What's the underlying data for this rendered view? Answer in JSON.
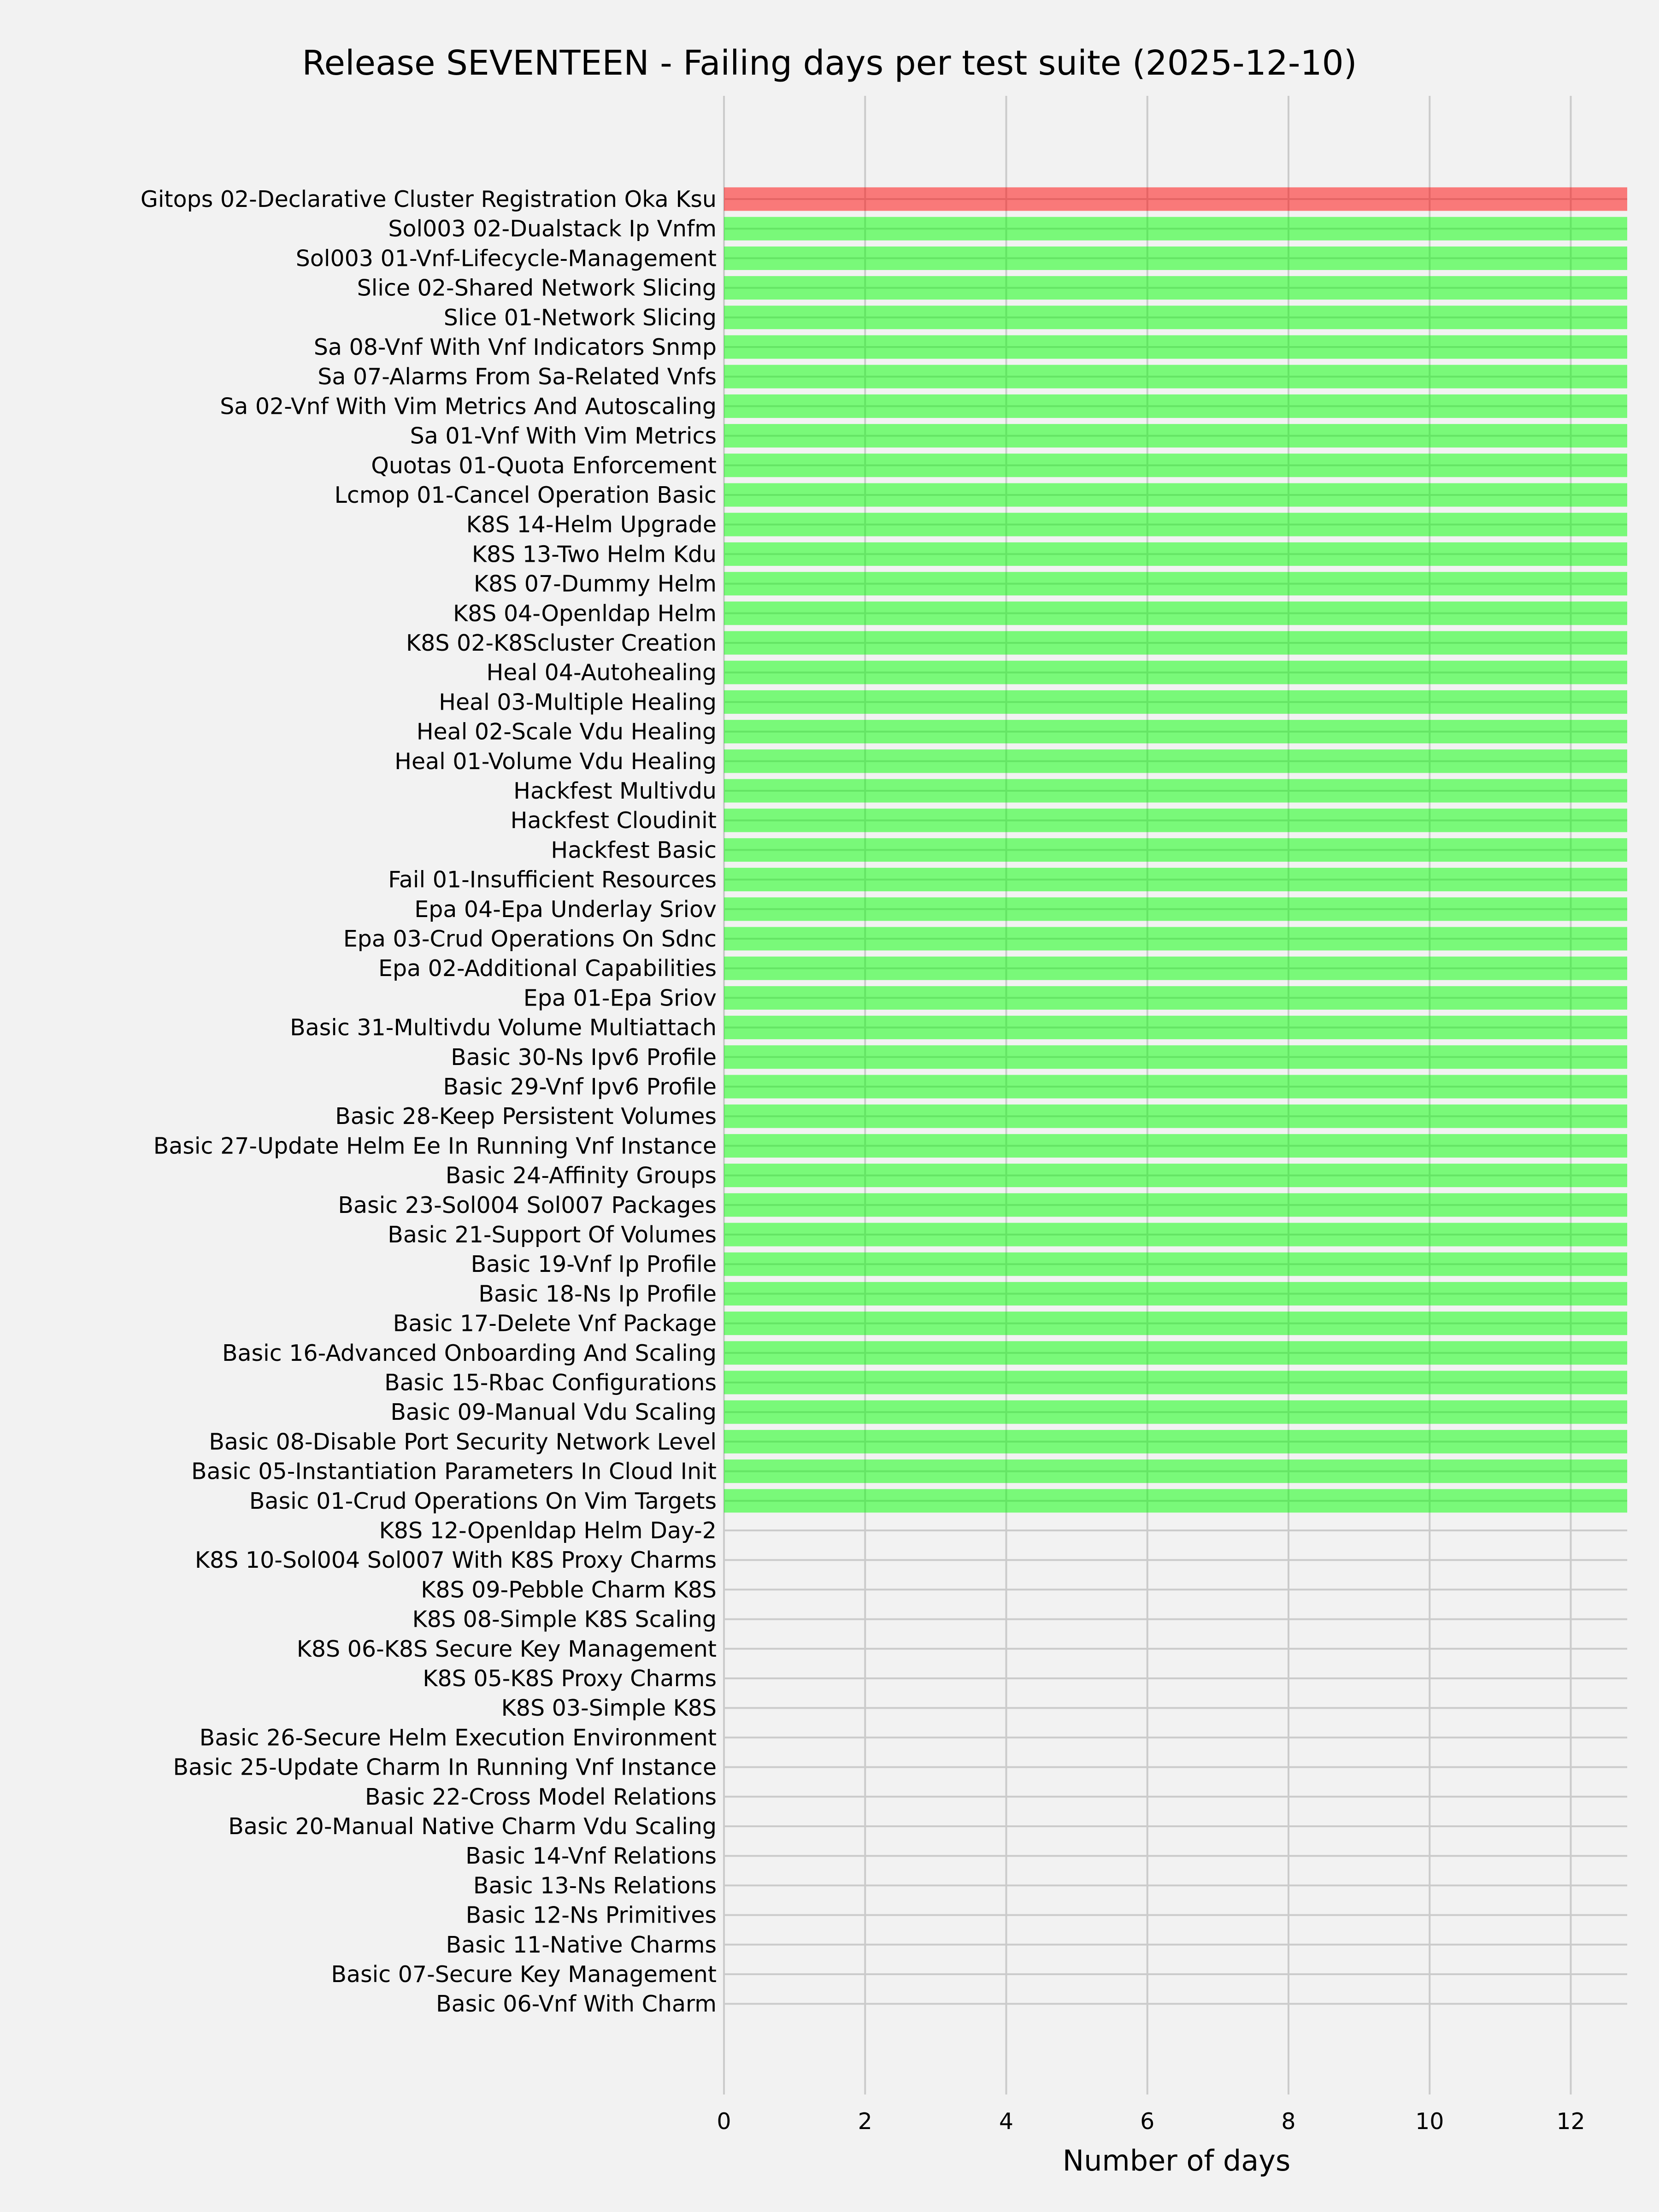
{
  "chart_data": {
    "type": "bar",
    "orientation": "horizontal",
    "title": "Release SEVENTEEN - Failing days per test suite (2025-12-10)",
    "xlabel": "Number of days",
    "ylabel": "",
    "xlim": [
      0,
      12.8
    ],
    "xticks": [
      0,
      2,
      4,
      6,
      8,
      10,
      12
    ],
    "grid": true,
    "background": "#f2f2f2",
    "bar_colors": {
      "failing": "#ff0000",
      "passing": "#00ff00"
    },
    "bar_alpha": 0.5,
    "categories": [
      "Gitops 02-Declarative Cluster Registration Oka Ksu",
      "Sol003 02-Dualstack Ip Vnfm",
      "Sol003 01-Vnf-Lifecycle-Management",
      "Slice 02-Shared Network Slicing",
      "Slice 01-Network Slicing",
      "Sa 08-Vnf With Vnf Indicators Snmp",
      "Sa 07-Alarms From Sa-Related Vnfs",
      "Sa 02-Vnf With Vim Metrics And Autoscaling",
      "Sa 01-Vnf With Vim Metrics",
      "Quotas 01-Quota Enforcement",
      "Lcmop 01-Cancel Operation Basic",
      "K8S 14-Helm Upgrade",
      "K8S 13-Two Helm Kdu",
      "K8S 07-Dummy Helm",
      "K8S 04-Openldap Helm",
      "K8S 02-K8Scluster Creation",
      "Heal 04-Autohealing",
      "Heal 03-Multiple Healing",
      "Heal 02-Scale Vdu Healing",
      "Heal 01-Volume Vdu Healing",
      "Hackfest Multivdu",
      "Hackfest Cloudinit",
      "Hackfest Basic",
      "Fail 01-Insufficient Resources",
      "Epa 04-Epa Underlay Sriov",
      "Epa 03-Crud Operations On Sdnc",
      "Epa 02-Additional Capabilities",
      "Epa 01-Epa Sriov",
      "Basic 31-Multivdu Volume Multiattach",
      "Basic 30-Ns Ipv6 Profile",
      "Basic 29-Vnf Ipv6 Profile",
      "Basic 28-Keep Persistent Volumes",
      "Basic 27-Update Helm Ee In Running Vnf Instance",
      "Basic 24-Affinity Groups",
      "Basic 23-Sol004 Sol007 Packages",
      "Basic 21-Support Of Volumes",
      "Basic 19-Vnf Ip Profile",
      "Basic 18-Ns Ip Profile",
      "Basic 17-Delete Vnf Package",
      "Basic 16-Advanced Onboarding And Scaling",
      "Basic 15-Rbac Configurations",
      "Basic 09-Manual Vdu Scaling",
      "Basic 08-Disable Port Security Network Level",
      "Basic 05-Instantiation Parameters In Cloud Init",
      "Basic 01-Crud Operations On Vim Targets",
      "K8S 12-Openldap Helm Day-2",
      "K8S 10-Sol004 Sol007 With K8S Proxy Charms",
      "K8S 09-Pebble Charm K8S",
      "K8S 08-Simple K8S Scaling",
      "K8S 06-K8S Secure Key Management",
      "K8S 05-K8S Proxy Charms",
      "K8S 03-Simple K8S",
      "Basic 26-Secure Helm Execution Environment",
      "Basic 25-Update Charm In Running Vnf Instance",
      "Basic 22-Cross Model Relations",
      "Basic 20-Manual Native Charm Vdu Scaling",
      "Basic 14-Vnf Relations",
      "Basic 13-Ns Relations",
      "Basic 12-Ns Primitives",
      "Basic 11-Native Charms",
      "Basic 07-Secure Key Management",
      "Basic 06-Vnf With Charm"
    ],
    "values": [
      12.8,
      12.8,
      12.8,
      12.8,
      12.8,
      12.8,
      12.8,
      12.8,
      12.8,
      12.8,
      12.8,
      12.8,
      12.8,
      12.8,
      12.8,
      12.8,
      12.8,
      12.8,
      12.8,
      12.8,
      12.8,
      12.8,
      12.8,
      12.8,
      12.8,
      12.8,
      12.8,
      12.8,
      12.8,
      12.8,
      12.8,
      12.8,
      12.8,
      12.8,
      12.8,
      12.8,
      12.8,
      12.8,
      12.8,
      12.8,
      12.8,
      12.8,
      12.8,
      12.8,
      12.8,
      0,
      0,
      0,
      0,
      0,
      0,
      0,
      0,
      0,
      0,
      0,
      0,
      0,
      0,
      0,
      0,
      0
    ],
    "bar_status": [
      "failing",
      "passing",
      "passing",
      "passing",
      "passing",
      "passing",
      "passing",
      "passing",
      "passing",
      "passing",
      "passing",
      "passing",
      "passing",
      "passing",
      "passing",
      "passing",
      "passing",
      "passing",
      "passing",
      "passing",
      "passing",
      "passing",
      "passing",
      "passing",
      "passing",
      "passing",
      "passing",
      "passing",
      "passing",
      "passing",
      "passing",
      "passing",
      "passing",
      "passing",
      "passing",
      "passing",
      "passing",
      "passing",
      "passing",
      "passing",
      "passing",
      "passing",
      "passing",
      "passing",
      "passing",
      "passing",
      "passing",
      "passing",
      "passing",
      "passing",
      "passing",
      "passing",
      "passing",
      "passing",
      "passing",
      "passing",
      "passing",
      "passing",
      "passing",
      "passing",
      "passing",
      "passing"
    ]
  }
}
